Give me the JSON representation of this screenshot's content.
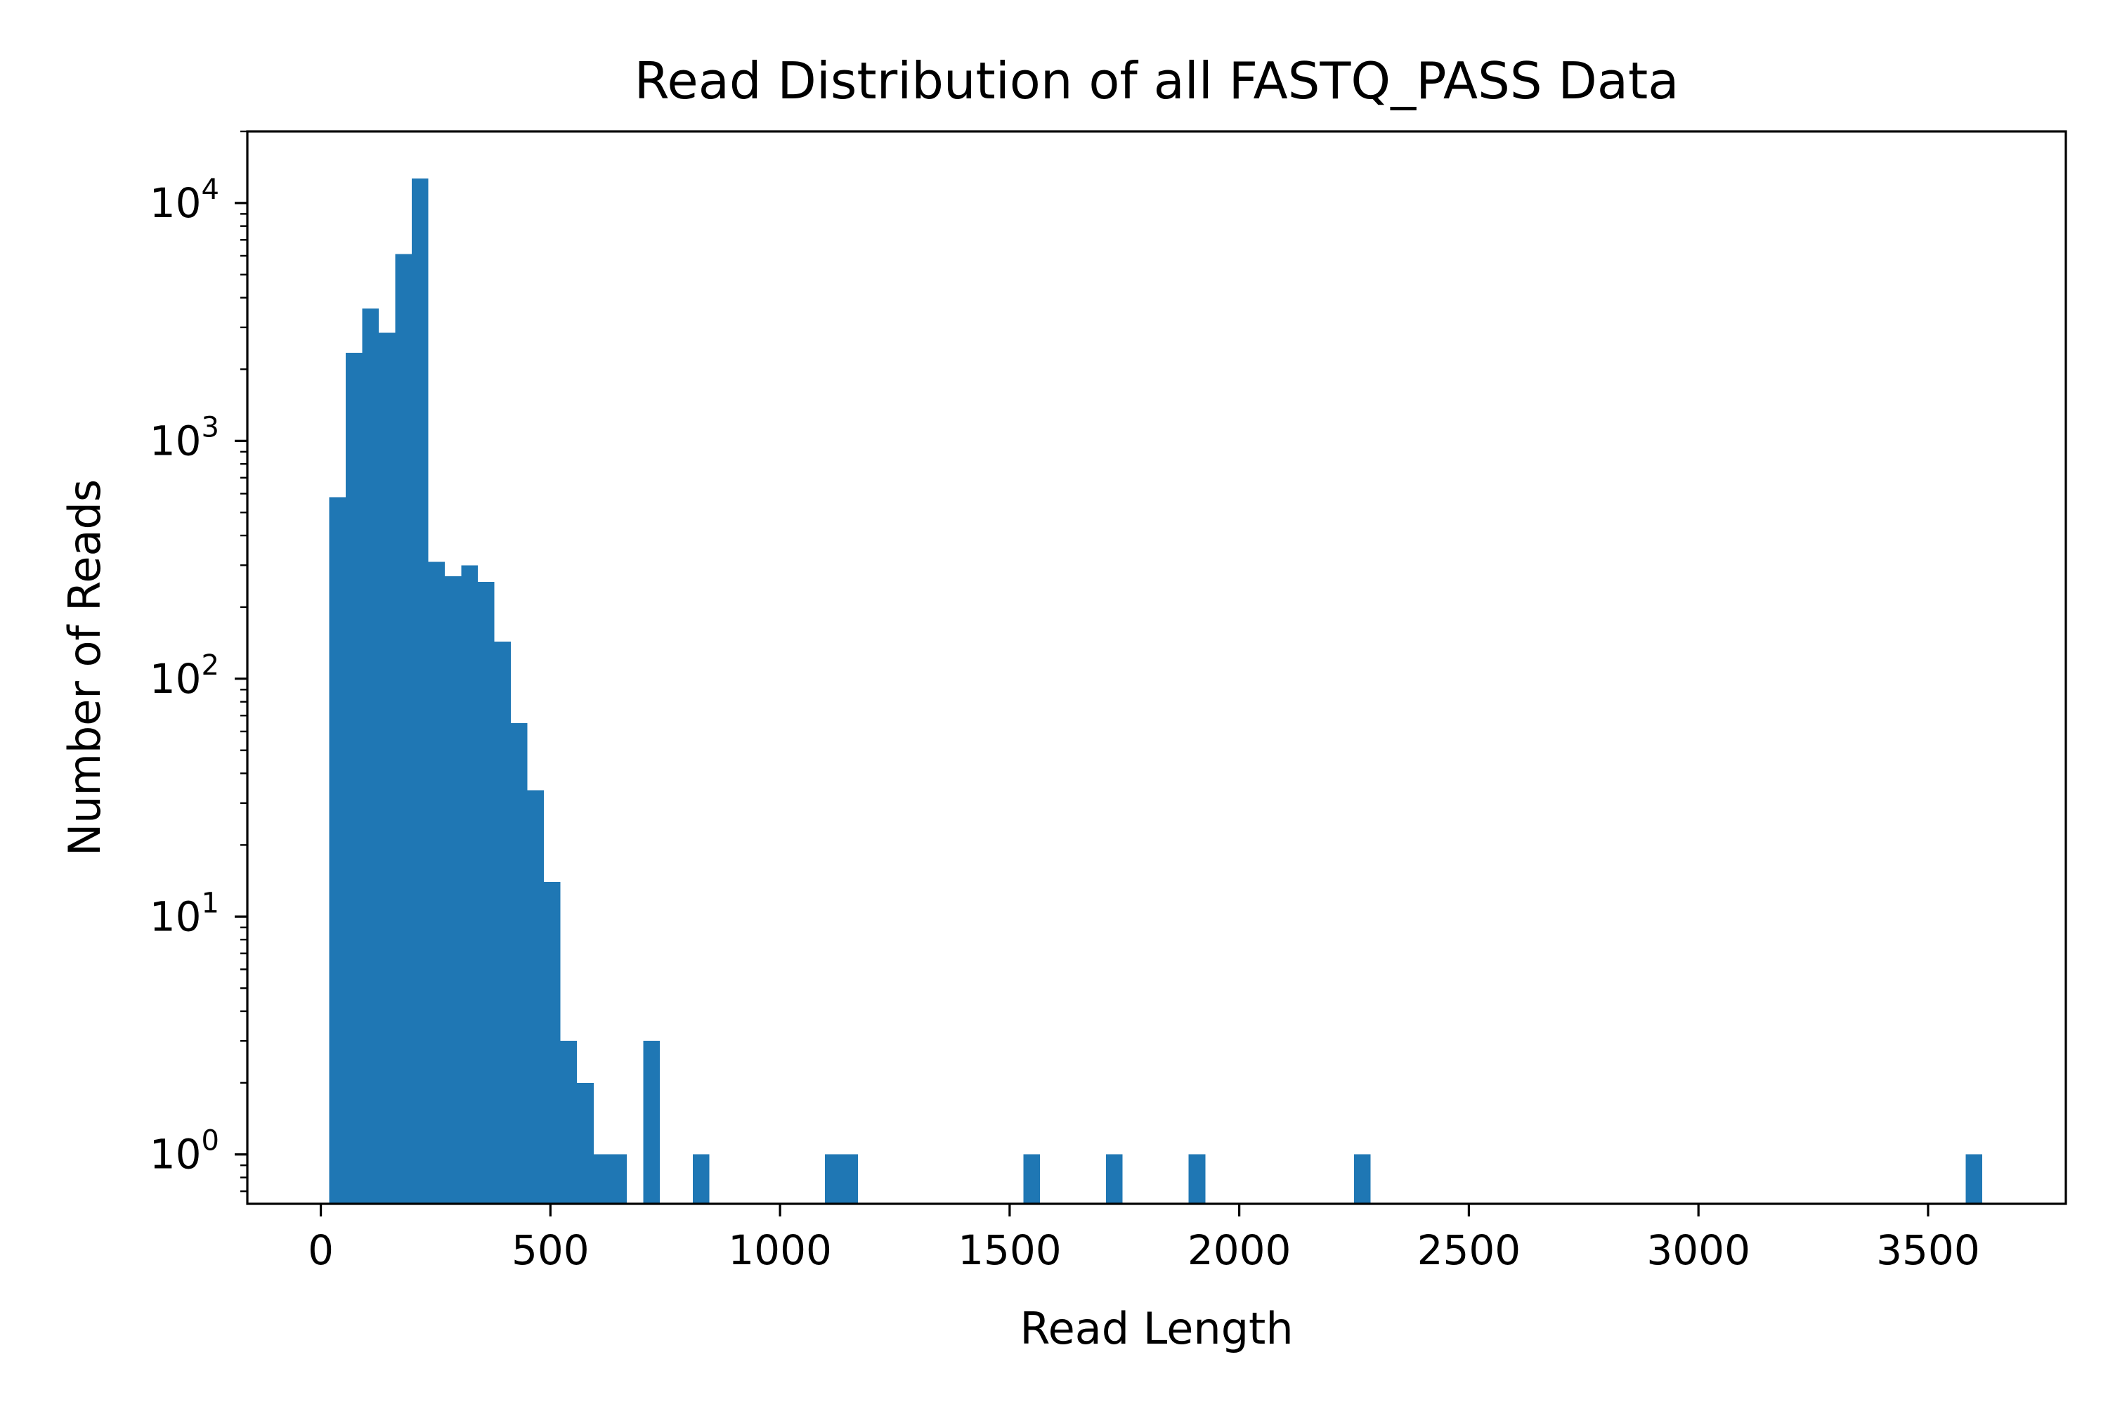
{
  "chart_data": {
    "type": "bar",
    "title": "Read Distribution of all FASTQ_PASS Data",
    "xlabel": "Read Length",
    "ylabel": "Number of Reads",
    "x_scale": "linear",
    "y_scale": "log",
    "xlim": [
      -160,
      3800
    ],
    "ylim": [
      0.62,
      20000
    ],
    "x_ticks": [
      0,
      500,
      1000,
      1500,
      2000,
      2500,
      3000,
      3500
    ],
    "x_tick_labels": [
      "0",
      "500",
      "1000",
      "1500",
      "2000",
      "2500",
      "3000",
      "3500"
    ],
    "y_ticks": [
      1,
      10,
      100,
      1000,
      10000
    ],
    "y_tick_labels": [
      {
        "base": "10",
        "exp": "0"
      },
      {
        "base": "10",
        "exp": "1"
      },
      {
        "base": "10",
        "exp": "2"
      },
      {
        "base": "10",
        "exp": "3"
      },
      {
        "base": "10",
        "exp": "4"
      }
    ],
    "grid": false,
    "legend": "none",
    "bar_color": "#1f77b4",
    "bins": {
      "start": 18,
      "width": 36,
      "count": 100
    },
    "bars": [
      {
        "x0": 18,
        "x1": 54,
        "y": 580
      },
      {
        "x0": 54,
        "x1": 90,
        "y": 2350
      },
      {
        "x0": 90,
        "x1": 126,
        "y": 3600
      },
      {
        "x0": 126,
        "x1": 162,
        "y": 2850
      },
      {
        "x0": 162,
        "x1": 198,
        "y": 6100
      },
      {
        "x0": 198,
        "x1": 234,
        "y": 12700
      },
      {
        "x0": 234,
        "x1": 270,
        "y": 310
      },
      {
        "x0": 270,
        "x1": 306,
        "y": 270
      },
      {
        "x0": 306,
        "x1": 342,
        "y": 300
      },
      {
        "x0": 342,
        "x1": 378,
        "y": 255
      },
      {
        "x0": 378,
        "x1": 414,
        "y": 143
      },
      {
        "x0": 414,
        "x1": 450,
        "y": 65
      },
      {
        "x0": 450,
        "x1": 486,
        "y": 34
      },
      {
        "x0": 486,
        "x1": 522,
        "y": 14
      },
      {
        "x0": 522,
        "x1": 558,
        "y": 3
      },
      {
        "x0": 558,
        "x1": 594,
        "y": 2
      },
      {
        "x0": 594,
        "x1": 630,
        "y": 1
      },
      {
        "x0": 630,
        "x1": 666,
        "y": 1
      },
      {
        "x0": 702,
        "x1": 738,
        "y": 3
      },
      {
        "x0": 810,
        "x1": 846,
        "y": 1
      },
      {
        "x0": 1098,
        "x1": 1134,
        "y": 1
      },
      {
        "x0": 1134,
        "x1": 1170,
        "y": 1
      },
      {
        "x0": 1530,
        "x1": 1566,
        "y": 1
      },
      {
        "x0": 1710,
        "x1": 1746,
        "y": 1
      },
      {
        "x0": 1890,
        "x1": 1926,
        "y": 1
      },
      {
        "x0": 2250,
        "x1": 2286,
        "y": 1
      },
      {
        "x0": 3582,
        "x1": 3618,
        "y": 1
      }
    ]
  }
}
